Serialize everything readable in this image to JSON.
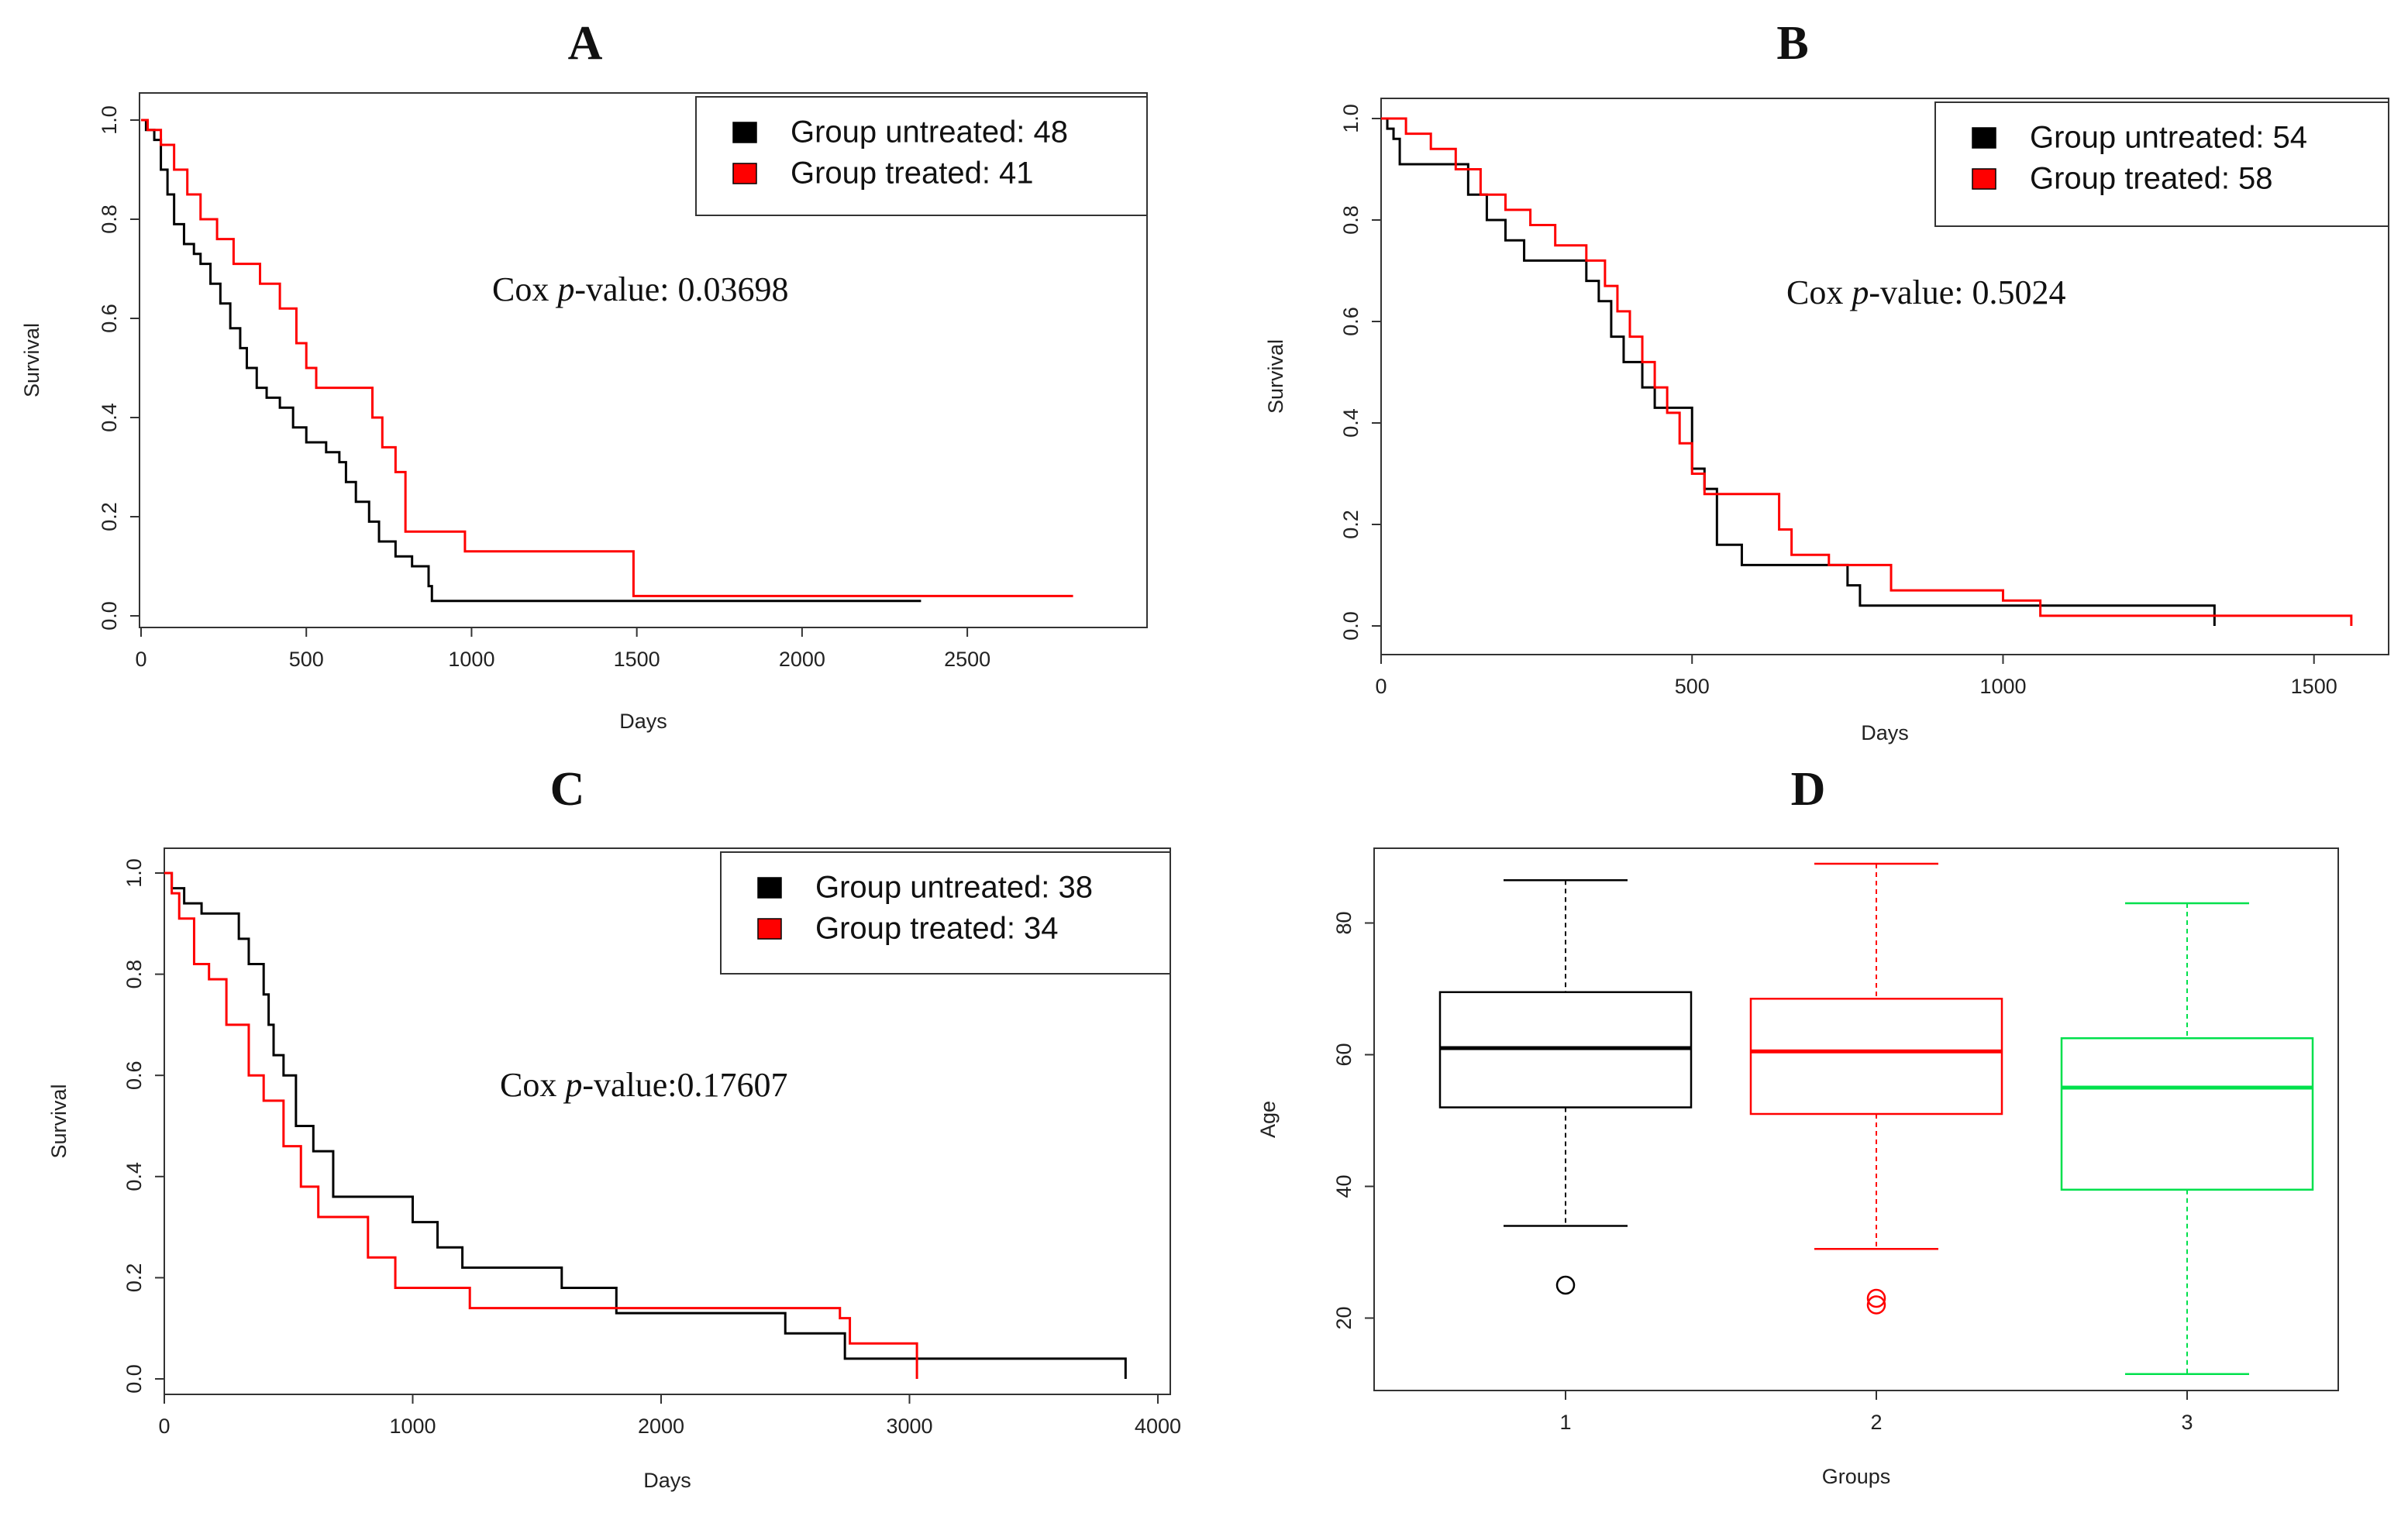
{
  "chart_data": [
    {
      "panel": "A",
      "type": "line",
      "subtype": "kaplan-meier",
      "title": "A",
      "xlabel": "Days",
      "ylabel": "Survival",
      "xlim": [
        0,
        2950
      ],
      "ylim": [
        0,
        1.0
      ],
      "xticks": [
        0,
        500,
        1000,
        1500,
        2000,
        2500
      ],
      "yticks": [
        0.0,
        0.2,
        0.4,
        0.6,
        0.8,
        1.0
      ],
      "xtick_labels": [
        "0",
        "500",
        "1000",
        "1500",
        "2000",
        "2500"
      ],
      "ytick_labels": [
        "0.0",
        "0.2",
        "0.4",
        "0.6",
        "0.8",
        "1.0"
      ],
      "legend": {
        "placement": "top-right",
        "entries": [
          {
            "label": "Group untreated: 48",
            "color": "#000000"
          },
          {
            "label": "Group treated: 41",
            "color": "#ff0000"
          }
        ]
      },
      "annotation": {
        "prefix": "Cox ",
        "italic": "p",
        "suffix": "-value: 0.03698"
      },
      "series": [
        {
          "name": "Group untreated: 48",
          "color": "#000000",
          "x": [
            0,
            15,
            40,
            60,
            80,
            100,
            130,
            160,
            180,
            210,
            240,
            270,
            300,
            320,
            350,
            380,
            420,
            460,
            500,
            560,
            600,
            620,
            650,
            690,
            720,
            770,
            820,
            870,
            880,
            2360
          ],
          "y": [
            1.0,
            0.98,
            0.96,
            0.9,
            0.85,
            0.79,
            0.75,
            0.73,
            0.71,
            0.67,
            0.63,
            0.58,
            0.54,
            0.5,
            0.46,
            0.44,
            0.42,
            0.38,
            0.35,
            0.33,
            0.31,
            0.27,
            0.23,
            0.19,
            0.15,
            0.12,
            0.1,
            0.06,
            0.03,
            0.03
          ]
        },
        {
          "name": "Group treated: 41",
          "color": "#ff0000",
          "x": [
            0,
            20,
            60,
            100,
            140,
            180,
            230,
            280,
            360,
            420,
            470,
            500,
            530,
            680,
            700,
            730,
            770,
            800,
            980,
            1480,
            1490,
            2820
          ],
          "y": [
            1.0,
            0.98,
            0.95,
            0.9,
            0.85,
            0.8,
            0.76,
            0.71,
            0.67,
            0.62,
            0.55,
            0.5,
            0.46,
            0.46,
            0.4,
            0.34,
            0.29,
            0.17,
            0.13,
            0.13,
            0.04,
            0.04
          ]
        }
      ]
    },
    {
      "panel": "B",
      "type": "line",
      "subtype": "kaplan-meier",
      "title": "B",
      "xlabel": "Days",
      "ylabel": "Survival",
      "xlim": [
        0,
        1620
      ],
      "ylim": [
        0,
        1.0
      ],
      "xticks": [
        0,
        500,
        1000,
        1500
      ],
      "yticks": [
        0.0,
        0.2,
        0.4,
        0.6,
        0.8,
        1.0
      ],
      "xtick_labels": [
        "0",
        "500",
        "1000",
        "1500"
      ],
      "ytick_labels": [
        "0.0",
        "0.2",
        "0.4",
        "0.6",
        "0.8",
        "1.0"
      ],
      "legend": {
        "placement": "top-right",
        "entries": [
          {
            "label": "Group untreated: 54",
            "color": "#000000"
          },
          {
            "label": "Group treated: 58",
            "color": "#ff0000"
          }
        ]
      },
      "annotation": {
        "prefix": "Cox ",
        "italic": "p",
        "suffix": "-value: 0.5024"
      },
      "series": [
        {
          "name": "Group untreated: 54",
          "color": "#000000",
          "x": [
            0,
            10,
            20,
            30,
            100,
            140,
            170,
            200,
            230,
            300,
            330,
            350,
            370,
            390,
            420,
            440,
            460,
            500,
            520,
            540,
            580,
            640,
            750,
            770,
            1340
          ],
          "y": [
            1.0,
            0.98,
            0.96,
            0.91,
            0.91,
            0.85,
            0.8,
            0.76,
            0.72,
            0.72,
            0.68,
            0.64,
            0.57,
            0.52,
            0.47,
            0.43,
            0.43,
            0.31,
            0.27,
            0.16,
            0.12,
            0.12,
            0.08,
            0.04,
            0.0
          ]
        },
        {
          "name": "Group treated: 58",
          "color": "#ff0000",
          "x": [
            0,
            40,
            80,
            120,
            160,
            200,
            240,
            280,
            330,
            360,
            380,
            400,
            420,
            440,
            460,
            480,
            500,
            520,
            600,
            640,
            660,
            720,
            820,
            1000,
            1060,
            1560
          ],
          "y": [
            1.0,
            0.97,
            0.94,
            0.9,
            0.85,
            0.82,
            0.79,
            0.75,
            0.72,
            0.67,
            0.62,
            0.57,
            0.52,
            0.47,
            0.42,
            0.36,
            0.3,
            0.26,
            0.26,
            0.19,
            0.14,
            0.12,
            0.07,
            0.05,
            0.02,
            0.0
          ]
        }
      ]
    },
    {
      "panel": "C",
      "type": "line",
      "subtype": "kaplan-meier",
      "title": "C",
      "xlabel": "Days",
      "ylabel": "Survival",
      "xlim": [
        0,
        4050
      ],
      "ylim": [
        0,
        1.0
      ],
      "xticks": [
        0,
        1000,
        2000,
        3000,
        4000
      ],
      "yticks": [
        0.0,
        0.2,
        0.4,
        0.6,
        0.8,
        1.0
      ],
      "xtick_labels": [
        "0",
        "1000",
        "2000",
        "3000",
        "4000"
      ],
      "ytick_labels": [
        "0.0",
        "0.2",
        "0.4",
        "0.6",
        "0.8",
        "1.0"
      ],
      "legend": {
        "placement": "top-right",
        "entries": [
          {
            "label": "Group untreated: 38",
            "color": "#000000"
          },
          {
            "label": "Group treated: 34",
            "color": "#ff0000"
          }
        ]
      },
      "annotation": {
        "prefix": "Cox ",
        "italic": "p",
        "suffix": "-value:0.17607"
      },
      "series": [
        {
          "name": "Group untreated: 38",
          "color": "#000000",
          "x": [
            0,
            30,
            80,
            150,
            300,
            340,
            400,
            420,
            440,
            480,
            530,
            600,
            680,
            1000,
            1100,
            1200,
            1600,
            1820,
            2500,
            2740,
            3870
          ],
          "y": [
            1.0,
            0.97,
            0.94,
            0.92,
            0.87,
            0.82,
            0.76,
            0.7,
            0.64,
            0.6,
            0.5,
            0.45,
            0.36,
            0.31,
            0.26,
            0.22,
            0.18,
            0.13,
            0.09,
            0.04,
            0.0
          ]
        },
        {
          "name": "Group treated: 34",
          "color": "#ff0000",
          "x": [
            0,
            30,
            60,
            120,
            180,
            250,
            340,
            400,
            480,
            550,
            620,
            820,
            930,
            1230,
            1800,
            2720,
            2760,
            3030
          ],
          "y": [
            1.0,
            0.96,
            0.91,
            0.82,
            0.79,
            0.7,
            0.6,
            0.55,
            0.46,
            0.38,
            0.32,
            0.24,
            0.18,
            0.14,
            0.14,
            0.12,
            0.07,
            0.0
          ]
        }
      ]
    },
    {
      "panel": "D",
      "type": "boxplot",
      "title": "D",
      "xlabel": "Groups",
      "ylabel": "Age",
      "ylim": [
        9,
        91
      ],
      "yticks": [
        20,
        40,
        60,
        80
      ],
      "ytick_labels": [
        "20",
        "40",
        "60",
        "80"
      ],
      "categories": [
        "1",
        "2",
        "3"
      ],
      "boxes": [
        {
          "group": "1",
          "color": "#000000",
          "min": 34,
          "q1": 52,
          "median": 61,
          "q3": 69.5,
          "max": 86.5,
          "outliers": [
            25
          ]
        },
        {
          "group": "2",
          "color": "#ff0000",
          "min": 30.5,
          "q1": 51,
          "median": 60.5,
          "q3": 68.5,
          "max": 89,
          "outliers": [
            22,
            23
          ]
        },
        {
          "group": "3",
          "color": "#00e04c",
          "min": 11.5,
          "q1": 39.5,
          "median": 55,
          "q3": 62.5,
          "max": 83,
          "outliers": []
        }
      ]
    }
  ]
}
